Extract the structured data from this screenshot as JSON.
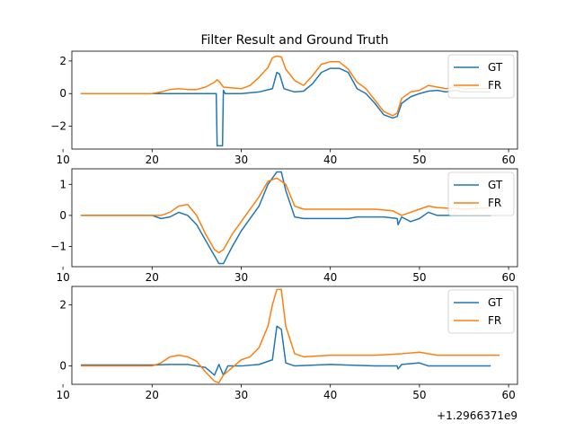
{
  "chart_data": {
    "type": "line",
    "title": "Filter Result and Ground Truth",
    "offset_label": "+1.2966371e9",
    "colors": {
      "GT": "#1f77b4",
      "FR": "#ff7f0e"
    },
    "panels": [
      {
        "xlim": [
          11,
          61
        ],
        "ylim": [
          -3.4,
          2.6
        ],
        "xticks": [
          10,
          20,
          30,
          40,
          50,
          60
        ],
        "yticks": [
          -2,
          0,
          2
        ],
        "grid": false,
        "legend": "top-right",
        "series": [
          {
            "name": "GT",
            "points": [
              [
                12,
                0
              ],
              [
                20,
                0
              ],
              [
                24,
                0
              ],
              [
                27,
                0
              ],
              [
                27.2,
                0
              ],
              [
                27.3,
                -3.2
              ],
              [
                27.9,
                -3.2
              ],
              [
                28,
                0.2
              ],
              [
                28.2,
                0
              ],
              [
                30,
                0
              ],
              [
                32,
                0.1
              ],
              [
                33.5,
                0.3
              ],
              [
                34,
                1.3
              ],
              [
                34.3,
                1.2
              ],
              [
                34.8,
                0.3
              ],
              [
                36,
                0.1
              ],
              [
                37,
                0.15
              ],
              [
                38,
                0.6
              ],
              [
                39,
                1.3
              ],
              [
                40,
                1.55
              ],
              [
                41,
                1.55
              ],
              [
                42,
                1.3
              ],
              [
                43,
                0.3
              ],
              [
                44,
                0
              ],
              [
                45,
                -0.6
              ],
              [
                46,
                -1.3
              ],
              [
                47,
                -1.5
              ],
              [
                47.5,
                -1.4
              ],
              [
                48,
                -0.6
              ],
              [
                49,
                -0.2
              ],
              [
                50,
                0
              ],
              [
                51,
                0.15
              ],
              [
                52,
                0.2
              ],
              [
                53,
                0.1
              ],
              [
                54,
                0.2
              ],
              [
                55,
                0.1
              ],
              [
                58,
                0.1
              ]
            ]
          },
          {
            "name": "FR",
            "points": [
              [
                12,
                0
              ],
              [
                20,
                0
              ],
              [
                21,
                0.1
              ],
              [
                22,
                0.25
              ],
              [
                23,
                0.3
              ],
              [
                24,
                0.25
              ],
              [
                25,
                0.25
              ],
              [
                26,
                0.4
              ],
              [
                27,
                0.7
              ],
              [
                27.3,
                0.85
              ],
              [
                27.6,
                0.7
              ],
              [
                28,
                0.4
              ],
              [
                30,
                0.3
              ],
              [
                31,
                0.5
              ],
              [
                32,
                1.0
              ],
              [
                33,
                1.6
              ],
              [
                33.5,
                2.2
              ],
              [
                34,
                2.3
              ],
              [
                34.5,
                2.25
              ],
              [
                35,
                1.5
              ],
              [
                36,
                0.8
              ],
              [
                37,
                0.5
              ],
              [
                38,
                1.1
              ],
              [
                39,
                1.8
              ],
              [
                40,
                1.95
              ],
              [
                41,
                1.95
              ],
              [
                42,
                1.5
              ],
              [
                43,
                0.7
              ],
              [
                44,
                0.3
              ],
              [
                45,
                -0.4
              ],
              [
                46,
                -1.1
              ],
              [
                47,
                -1.35
              ],
              [
                47.5,
                -1.2
              ],
              [
                48,
                -0.3
              ],
              [
                49,
                0.1
              ],
              [
                50,
                0.2
              ],
              [
                51,
                0.5
              ],
              [
                52,
                0.4
              ],
              [
                53,
                0.3
              ],
              [
                54,
                0.4
              ],
              [
                55,
                0.3
              ],
              [
                58,
                0.3
              ]
            ]
          }
        ]
      },
      {
        "xlim": [
          11,
          61
        ],
        "ylim": [
          -1.65,
          1.5
        ],
        "xticks": [
          10,
          20,
          30,
          40,
          50,
          60
        ],
        "yticks": [
          -1,
          0,
          1
        ],
        "grid": false,
        "legend": "top-right",
        "series": [
          {
            "name": "GT",
            "points": [
              [
                12,
                0
              ],
              [
                20,
                0
              ],
              [
                21,
                -0.1
              ],
              [
                22,
                -0.05
              ],
              [
                23,
                0.1
              ],
              [
                24,
                0.0
              ],
              [
                25,
                -0.3
              ],
              [
                26,
                -0.8
              ],
              [
                27,
                -1.3
              ],
              [
                27.5,
                -1.55
              ],
              [
                28,
                -1.55
              ],
              [
                29,
                -1.0
              ],
              [
                30,
                -0.5
              ],
              [
                31,
                -0.1
              ],
              [
                32,
                0.3
              ],
              [
                33,
                1.0
              ],
              [
                34,
                1.4
              ],
              [
                34.5,
                1.4
              ],
              [
                35,
                0.8
              ],
              [
                36,
                -0.05
              ],
              [
                37,
                -0.1
              ],
              [
                40,
                -0.1
              ],
              [
                42,
                -0.1
              ],
              [
                43,
                -0.05
              ],
              [
                46,
                -0.05
              ],
              [
                47.5,
                -0.1
              ],
              [
                47.6,
                -0.3
              ],
              [
                48,
                -0.05
              ],
              [
                49,
                -0.2
              ],
              [
                50,
                -0.1
              ],
              [
                51,
                0.1
              ],
              [
                52,
                0.0
              ],
              [
                58,
                0.0
              ]
            ]
          },
          {
            "name": "FR",
            "points": [
              [
                12,
                0
              ],
              [
                20,
                0
              ],
              [
                21,
                0.0
              ],
              [
                22,
                0.1
              ],
              [
                23,
                0.3
              ],
              [
                24,
                0.35
              ],
              [
                25,
                0.0
              ],
              [
                26,
                -0.6
              ],
              [
                27,
                -1.1
              ],
              [
                27.5,
                -1.2
              ],
              [
                28,
                -1.1
              ],
              [
                29,
                -0.6
              ],
              [
                30,
                -0.2
              ],
              [
                31,
                0.2
              ],
              [
                32,
                0.6
              ],
              [
                33,
                1.1
              ],
              [
                34,
                1.2
              ],
              [
                34.5,
                1.1
              ],
              [
                35,
                1.0
              ],
              [
                36,
                0.3
              ],
              [
                37,
                0.2
              ],
              [
                40,
                0.2
              ],
              [
                45,
                0.2
              ],
              [
                47,
                0.15
              ],
              [
                48,
                0.0
              ],
              [
                49,
                0.1
              ],
              [
                50,
                0.2
              ],
              [
                51,
                0.3
              ],
              [
                52,
                0.25
              ],
              [
                55,
                0.2
              ],
              [
                58,
                0.25
              ]
            ]
          }
        ]
      },
      {
        "xlim": [
          11,
          61
        ],
        "ylim": [
          -0.6,
          2.6
        ],
        "xticks": [
          10,
          20,
          30,
          40,
          50,
          60
        ],
        "yticks": [
          0,
          2
        ],
        "grid": false,
        "legend": "top-right",
        "series": [
          {
            "name": "GT",
            "points": [
              [
                12,
                0.03
              ],
              [
                20,
                0.03
              ],
              [
                22,
                0.05
              ],
              [
                24,
                0.05
              ],
              [
                25,
                0.0
              ],
              [
                26,
                -0.05
              ],
              [
                27,
                -0.3
              ],
              [
                27.5,
                0.05
              ],
              [
                28,
                -0.3
              ],
              [
                28.5,
                0.0
              ],
              [
                30,
                0.0
              ],
              [
                32,
                0.05
              ],
              [
                33.5,
                0.2
              ],
              [
                34,
                1.3
              ],
              [
                34.5,
                1.2
              ],
              [
                35,
                0.1
              ],
              [
                36,
                0.0
              ],
              [
                40,
                0.05
              ],
              [
                45,
                0.0
              ],
              [
                47.5,
                0.0
              ],
              [
                47.6,
                -0.1
              ],
              [
                48,
                0.05
              ],
              [
                50,
                0.1
              ],
              [
                51,
                0.0
              ],
              [
                53,
                0.0
              ],
              [
                58,
                0.0
              ]
            ]
          },
          {
            "name": "FR",
            "points": [
              [
                12,
                0
              ],
              [
                20,
                0
              ],
              [
                21,
                0.1
              ],
              [
                22,
                0.3
              ],
              [
                23,
                0.35
              ],
              [
                24,
                0.3
              ],
              [
                25,
                0.15
              ],
              [
                26,
                -0.2
              ],
              [
                27,
                -0.5
              ],
              [
                27.5,
                -0.55
              ],
              [
                28,
                -0.3
              ],
              [
                29,
                -0.05
              ],
              [
                30,
                0.2
              ],
              [
                31,
                0.3
              ],
              [
                32,
                0.6
              ],
              [
                33,
                1.3
              ],
              [
                33.5,
                2.0
              ],
              [
                34,
                2.5
              ],
              [
                34.5,
                2.5
              ],
              [
                35,
                1.3
              ],
              [
                36,
                0.4
              ],
              [
                37,
                0.3
              ],
              [
                40,
                0.35
              ],
              [
                45,
                0.35
              ],
              [
                48,
                0.4
              ],
              [
                50,
                0.45
              ],
              [
                52,
                0.35
              ],
              [
                55,
                0.35
              ],
              [
                59,
                0.35
              ]
            ]
          }
        ]
      }
    ]
  }
}
